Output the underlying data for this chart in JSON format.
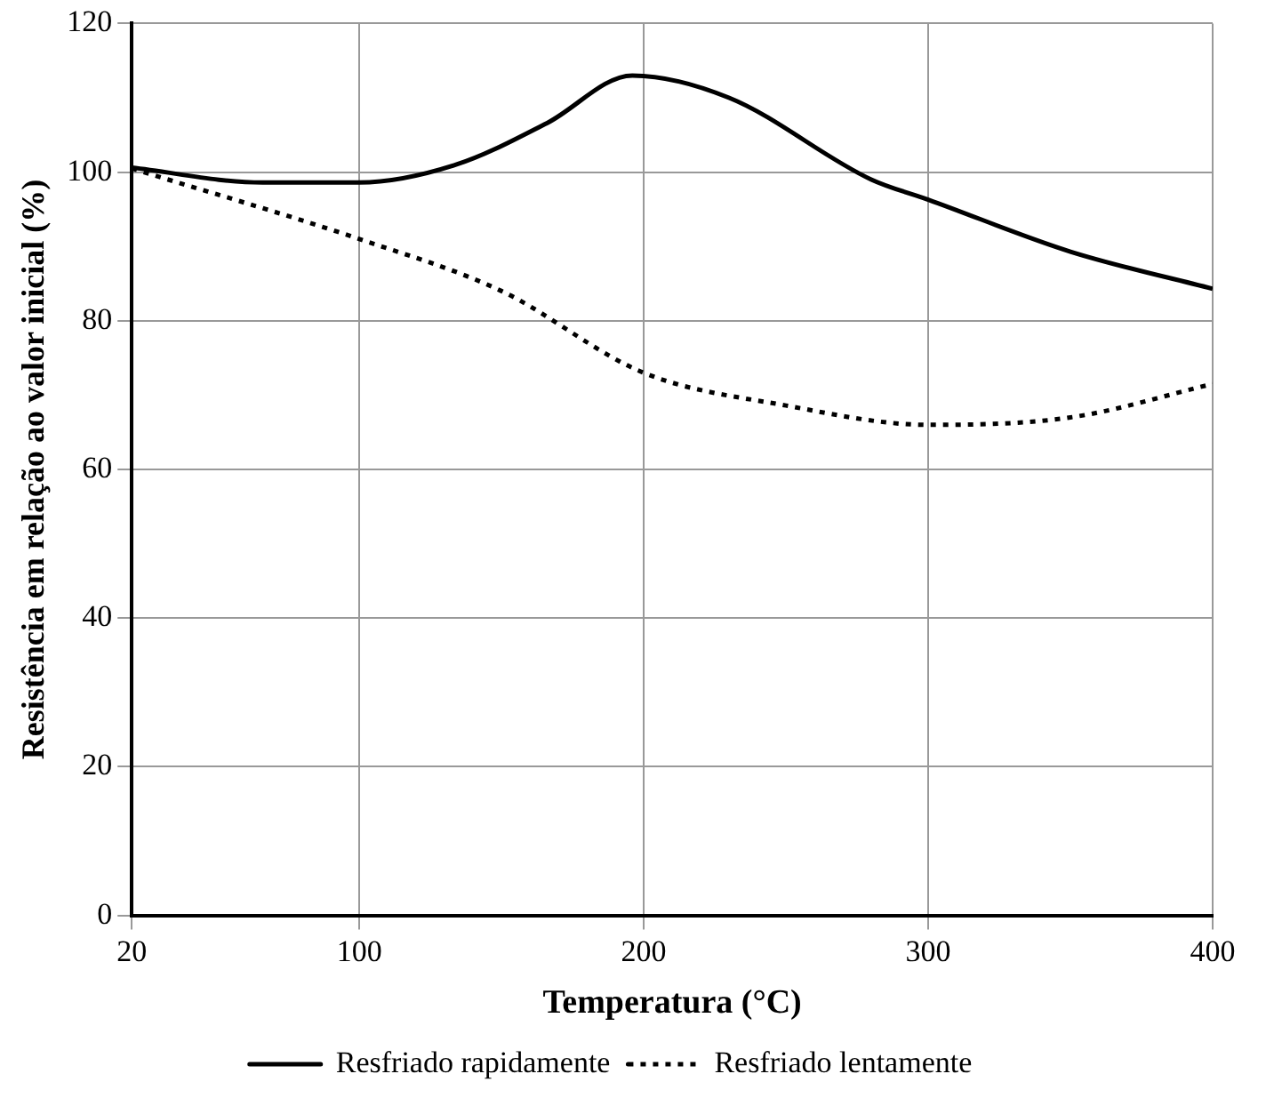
{
  "chart_data": {
    "type": "line",
    "xlabel": "Temperatura (°C)",
    "ylabel": "Resistência em relação ao valor inicial (%)",
    "xlim": [
      20,
      400
    ],
    "xticks": [
      20,
      100,
      200,
      300,
      400
    ],
    "ylim": [
      0,
      120
    ],
    "yticks": [
      0,
      20,
      40,
      60,
      80,
      100,
      120
    ],
    "grid": true,
    "legend": "bottom",
    "marker": "none",
    "series": [
      {
        "name": "Resfriado rapidamente",
        "color": "#000000",
        "line_style": "solid",
        "x": [
          20,
          66,
          100,
          134,
          166,
          196,
          230,
          280,
          300,
          350,
          400
        ],
        "values": [
          100.6,
          98.6,
          98.6,
          101,
          106.6,
          113,
          110,
          99,
          96.3,
          89.3,
          84.3
        ]
      },
      {
        "name": "Resfriado lentamente",
        "color": "#000000",
        "line_style": "dotted",
        "x": [
          20,
          100,
          150,
          200,
          250,
          300,
          350,
          400
        ],
        "values": [
          100.5,
          91,
          84,
          73,
          68.6,
          66,
          67,
          71.5
        ]
      }
    ]
  }
}
